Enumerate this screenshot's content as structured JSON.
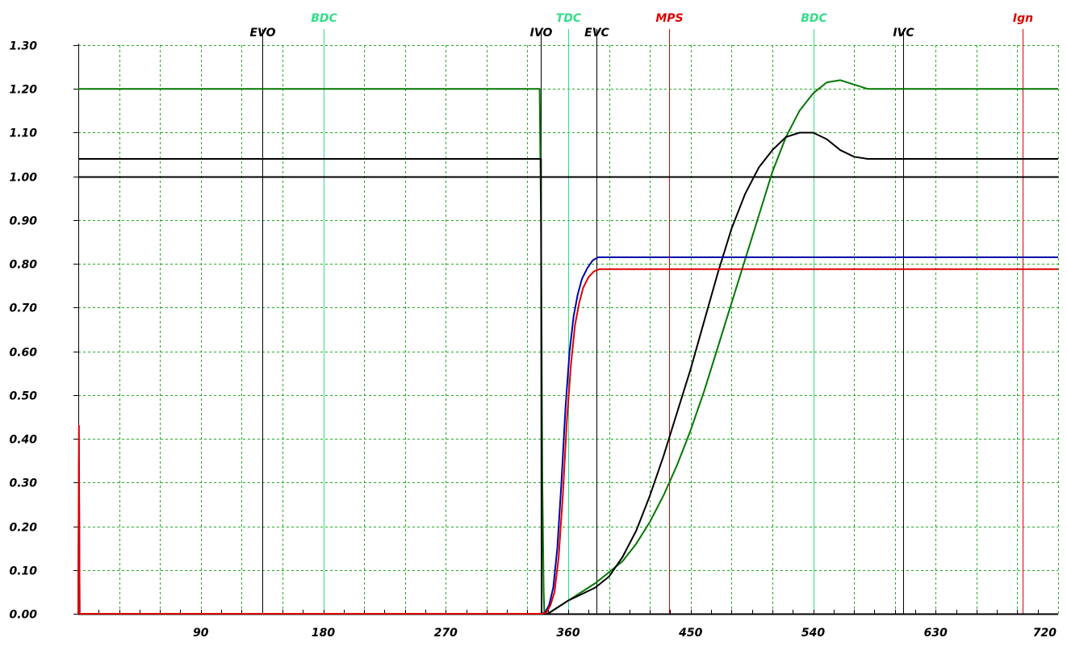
{
  "chart_data": {
    "type": "line",
    "xlim": [
      0,
      720
    ],
    "ylim": [
      0,
      1.3
    ],
    "grid": true,
    "x_ticks": [
      {
        "value": 90,
        "label": "90"
      },
      {
        "value": 180,
        "label": "180"
      },
      {
        "value": 270,
        "label": "270"
      },
      {
        "value": 360,
        "label": "360"
      },
      {
        "value": 450,
        "label": "450"
      },
      {
        "value": 540,
        "label": "540"
      },
      {
        "value": 630,
        "label": "630"
      },
      {
        "value": 720,
        "label": "720"
      }
    ],
    "y_ticks": [
      {
        "value": 0.0,
        "label": "0.00"
      },
      {
        "value": 0.1,
        "label": "0.10"
      },
      {
        "value": 0.2,
        "label": "0.20"
      },
      {
        "value": 0.3,
        "label": "0.30"
      },
      {
        "value": 0.4,
        "label": "0.40"
      },
      {
        "value": 0.5,
        "label": "0.50"
      },
      {
        "value": 0.6,
        "label": "0.60"
      },
      {
        "value": 0.7,
        "label": "0.70"
      },
      {
        "value": 0.8,
        "label": "0.80"
      },
      {
        "value": 0.9,
        "label": "0.90"
      },
      {
        "value": 1.0,
        "label": "1.00"
      },
      {
        "value": 1.1,
        "label": "1.10"
      },
      {
        "value": 1.2,
        "label": "1.20"
      },
      {
        "value": 1.3,
        "label": "1.30"
      }
    ],
    "reference_line_y": 1.0,
    "events": [
      {
        "label": "EVO",
        "x": 135,
        "color": "#000000",
        "row": "lower"
      },
      {
        "label": "BDC",
        "x": 180,
        "color": "#33dd88",
        "row": "upper"
      },
      {
        "label": "IVO",
        "x": 340,
        "color": "#000000",
        "row": "lower"
      },
      {
        "label": "TDC",
        "x": 360,
        "color": "#33dd88",
        "row": "upper"
      },
      {
        "label": "EVC",
        "x": 381,
        "color": "#000000",
        "row": "lower"
      },
      {
        "label": "MPS",
        "x": 434,
        "color": "#dd0000",
        "row": "upper"
      },
      {
        "label": "BDC",
        "x": 540,
        "color": "#33dd88",
        "row": "upper"
      },
      {
        "label": "IVC",
        "x": 606,
        "color": "#000000",
        "row": "lower"
      },
      {
        "label": "Ign",
        "x": 694,
        "color": "#dd0000",
        "row": "upper"
      }
    ],
    "series": [
      {
        "color": "#007700",
        "points": [
          [
            0,
            1.2
          ],
          [
            339,
            1.2
          ],
          [
            340,
            0.9
          ],
          [
            340.5,
            0.62
          ],
          [
            341,
            0.3
          ],
          [
            342,
            0.05
          ],
          [
            342.5,
            0
          ],
          [
            345,
            0
          ],
          [
            350,
            0.01
          ],
          [
            360,
            0.03
          ],
          [
            370,
            0.05
          ],
          [
            380,
            0.07
          ],
          [
            390,
            0.095
          ],
          [
            400,
            0.12
          ],
          [
            410,
            0.16
          ],
          [
            420,
            0.21
          ],
          [
            430,
            0.27
          ],
          [
            440,
            0.34
          ],
          [
            450,
            0.42
          ],
          [
            460,
            0.51
          ],
          [
            470,
            0.61
          ],
          [
            480,
            0.71
          ],
          [
            490,
            0.81
          ],
          [
            500,
            0.91
          ],
          [
            510,
            1.01
          ],
          [
            520,
            1.09
          ],
          [
            530,
            1.15
          ],
          [
            540,
            1.19
          ],
          [
            550,
            1.215
          ],
          [
            560,
            1.22
          ],
          [
            570,
            1.21
          ],
          [
            580,
            1.2
          ],
          [
            720,
            1.2
          ]
        ]
      },
      {
        "color": "#000000",
        "points": [
          [
            0,
            1.04
          ],
          [
            340,
            1.04
          ],
          [
            340.5,
            0
          ],
          [
            345,
            0
          ],
          [
            350,
            0.01
          ],
          [
            360,
            0.03
          ],
          [
            370,
            0.045
          ],
          [
            380,
            0.06
          ],
          [
            390,
            0.085
          ],
          [
            400,
            0.13
          ],
          [
            410,
            0.19
          ],
          [
            420,
            0.27
          ],
          [
            430,
            0.36
          ],
          [
            440,
            0.46
          ],
          [
            450,
            0.56
          ],
          [
            460,
            0.67
          ],
          [
            470,
            0.78
          ],
          [
            480,
            0.88
          ],
          [
            490,
            0.96
          ],
          [
            500,
            1.02
          ],
          [
            510,
            1.06
          ],
          [
            520,
            1.09
          ],
          [
            530,
            1.1
          ],
          [
            540,
            1.1
          ],
          [
            550,
            1.085
          ],
          [
            560,
            1.06
          ],
          [
            570,
            1.045
          ],
          [
            580,
            1.04
          ],
          [
            720,
            1.04
          ]
        ]
      },
      {
        "color": "#0000aa",
        "points": [
          [
            0,
            0
          ],
          [
            0.5,
            0.35
          ],
          [
            1,
            0
          ],
          [
            340,
            0
          ],
          [
            343,
            0.003
          ],
          [
            346,
            0.02
          ],
          [
            349,
            0.06
          ],
          [
            352,
            0.15
          ],
          [
            355,
            0.3
          ],
          [
            358,
            0.47
          ],
          [
            361,
            0.6
          ],
          [
            364,
            0.68
          ],
          [
            367,
            0.73
          ],
          [
            370,
            0.765
          ],
          [
            374,
            0.79
          ],
          [
            378,
            0.808
          ],
          [
            382,
            0.815
          ],
          [
            720,
            0.815
          ]
        ]
      },
      {
        "color": "#dd0000",
        "points": [
          [
            0,
            0
          ],
          [
            0.5,
            0.43
          ],
          [
            1,
            0
          ],
          [
            340,
            0
          ],
          [
            344,
            0.003
          ],
          [
            347,
            0.02
          ],
          [
            350,
            0.05
          ],
          [
            353,
            0.13
          ],
          [
            356,
            0.27
          ],
          [
            359,
            0.44
          ],
          [
            362,
            0.57
          ],
          [
            365,
            0.66
          ],
          [
            368,
            0.71
          ],
          [
            371,
            0.745
          ],
          [
            375,
            0.77
          ],
          [
            379,
            0.783
          ],
          [
            383,
            0.788
          ],
          [
            720,
            0.788
          ]
        ]
      }
    ]
  }
}
